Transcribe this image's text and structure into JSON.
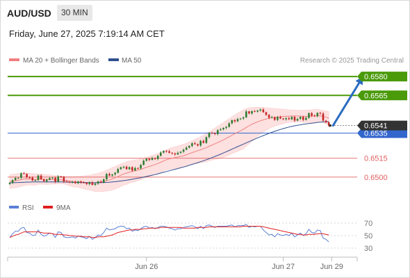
{
  "header": {
    "symbol": "AUD/USD",
    "timeframe": "30 MIN",
    "datetime": "Friday, June 27, 2025 7:19:14 AM CET"
  },
  "colors": {
    "resistance": "#4a9a0a",
    "pivot": "#3366cc",
    "support": "#e06060",
    "bull": "#2e7d32",
    "bear": "#c62828",
    "ma20": "#f08080",
    "ma50": "#2f4f8f",
    "bands": "#fde0e0",
    "rsi": "#5b7fd6",
    "rsi_ma": "#e02020",
    "arrow": "#2a6cc0",
    "current": "#333333"
  },
  "chart_data": [
    {
      "type": "candlestick",
      "legend": [
        {
          "name": "MA 20 + Bollinger Bands",
          "color": "#f08080"
        },
        {
          "name": "MA 50",
          "color": "#2f4f8f"
        }
      ],
      "credit": "Research © 2025 Trading Central",
      "ylim": [
        0.64938,
        0.65845
      ],
      "x_labels": [
        {
          "label": "Jun 26",
          "index": 48
        },
        {
          "label": "Jun 27",
          "index": 96
        },
        {
          "label": "Jun 29",
          "index": 113
        }
      ],
      "levels": [
        {
          "value": 0.658,
          "label": "0.6580",
          "kind": "resistance"
        },
        {
          "value": 0.6565,
          "label": "0.6565",
          "kind": "resistance"
        },
        {
          "value": 0.6535,
          "label": "0.6535",
          "kind": "pivot"
        },
        {
          "value": 0.6515,
          "label": "0.6515",
          "kind": "support"
        },
        {
          "value": 0.65,
          "label": "0.6500",
          "kind": "support"
        }
      ],
      "last_price": {
        "value": 0.6541,
        "label": "0.6541"
      },
      "forecast_arrow": {
        "from": {
          "index": 113,
          "value": 0.6541
        },
        "to": {
          "index": 124,
          "value": 0.658
        }
      },
      "closes": [
        0.64955,
        0.64976,
        0.64993,
        0.64994,
        0.6503,
        0.65025,
        0.64998,
        0.64996,
        0.64973,
        0.64977,
        0.65012,
        0.64982,
        0.64967,
        0.64979,
        0.64992,
        0.64995,
        0.64963,
        0.65005,
        0.65002,
        0.64965,
        0.64963,
        0.64959,
        0.64962,
        0.64951,
        0.64965,
        0.64957,
        0.64954,
        0.64944,
        0.64958,
        0.64938,
        0.64948,
        0.64965,
        0.64958,
        0.64983,
        0.65025,
        0.65012,
        0.65021,
        0.65034,
        0.65064,
        0.65078,
        0.65082,
        0.65063,
        0.65079,
        0.65052,
        0.65072,
        0.65069,
        0.65097,
        0.6513,
        0.65146,
        0.65137,
        0.65151,
        0.65144,
        0.65169,
        0.65195,
        0.65208,
        0.65205,
        0.65193,
        0.65188,
        0.6518,
        0.65193,
        0.65202,
        0.65218,
        0.65235,
        0.65248,
        0.65269,
        0.65262,
        0.65251,
        0.65288,
        0.65272,
        0.65318,
        0.65351,
        0.6535,
        0.65342,
        0.65373,
        0.6538,
        0.65391,
        0.65399,
        0.65427,
        0.65453,
        0.65443,
        0.65462,
        0.65466,
        0.65475,
        0.65523,
        0.65506,
        0.65524,
        0.65521,
        0.6553,
        0.65538,
        0.65516,
        0.65495,
        0.65472,
        0.65477,
        0.65455,
        0.65478,
        0.65466,
        0.6546,
        0.65469,
        0.6546,
        0.65479,
        0.65449,
        0.65463,
        0.65479,
        0.65455,
        0.65471,
        0.65509,
        0.65489,
        0.65484,
        0.65511,
        0.65506,
        0.65449,
        0.65436,
        0.6541
      ],
      "ma20": [
        0.64965,
        0.64968,
        0.6497,
        0.64975,
        0.6498,
        0.64985,
        0.64985,
        0.64985,
        0.64982,
        0.6498,
        0.64985,
        0.64985,
        0.64982,
        0.6498,
        0.6498,
        0.6498,
        0.64978,
        0.64978,
        0.64978,
        0.64975,
        0.64972,
        0.64968,
        0.64965,
        0.64962,
        0.64962,
        0.6496,
        0.64958,
        0.64956,
        0.64956,
        0.64955,
        0.64955,
        0.64958,
        0.6496,
        0.64965,
        0.64972,
        0.64978,
        0.64985,
        0.64995,
        0.65005,
        0.65015,
        0.65025,
        0.65032,
        0.6504,
        0.65045,
        0.6505,
        0.65055,
        0.65062,
        0.6507,
        0.65078,
        0.65085,
        0.65092,
        0.651,
        0.65108,
        0.65118,
        0.65128,
        0.65138,
        0.65145,
        0.6515,
        0.65155,
        0.6516,
        0.65165,
        0.6517,
        0.65178,
        0.65186,
        0.65195,
        0.65202,
        0.6521,
        0.65218,
        0.65226,
        0.65235,
        0.65245,
        0.65255,
        0.65265,
        0.65275,
        0.65285,
        0.65296,
        0.65308,
        0.6532,
        0.65333,
        0.65345,
        0.65357,
        0.65368,
        0.6538,
        0.65395,
        0.65408,
        0.6542,
        0.6543,
        0.6544,
        0.65448,
        0.65455,
        0.65462,
        0.65468,
        0.65472,
        0.65475,
        0.65478,
        0.6548,
        0.65482,
        0.65484,
        0.65485,
        0.65486,
        0.65486,
        0.65486,
        0.65485,
        0.65484,
        0.65483,
        0.65484,
        0.65485,
        0.65486,
        0.65487,
        0.65487,
        0.65482,
        0.65476,
        0.65468
      ],
      "ma50": [
        0.64955,
        0.64955,
        0.64956,
        0.64957,
        0.64958,
        0.64959,
        0.6496,
        0.6496,
        0.64961,
        0.64961,
        0.64962,
        0.64962,
        0.64962,
        0.64962,
        0.64962,
        0.64962,
        0.64962,
        0.64961,
        0.64961,
        0.6496,
        0.6496,
        0.64959,
        0.64959,
        0.64958,
        0.64958,
        0.64957,
        0.64957,
        0.64956,
        0.64956,
        0.64955,
        0.64955,
        0.64955,
        0.64956,
        0.64957,
        0.64958,
        0.64959,
        0.64961,
        0.64963,
        0.64966,
        0.64969,
        0.64972,
        0.64975,
        0.64979,
        0.64983,
        0.64987,
        0.64991,
        0.64995,
        0.65,
        0.65005,
        0.6501,
        0.65015,
        0.6502,
        0.65026,
        0.65032,
        0.65038,
        0.65044,
        0.6505,
        0.65056,
        0.65062,
        0.65068,
        0.65074,
        0.6508,
        0.65087,
        0.65094,
        0.65101,
        0.65108,
        0.65115,
        0.65122,
        0.6513,
        0.65138,
        0.65146,
        0.65155,
        0.65164,
        0.65173,
        0.65182,
        0.65192,
        0.65202,
        0.65212,
        0.65222,
        0.65232,
        0.65242,
        0.65252,
        0.65262,
        0.65272,
        0.65282,
        0.65292,
        0.65302,
        0.65312,
        0.65321,
        0.6533,
        0.65339,
        0.65348,
        0.65356,
        0.65364,
        0.65372,
        0.65379,
        0.65386,
        0.65392,
        0.65398,
        0.65403,
        0.65408,
        0.65412,
        0.65416,
        0.6542,
        0.65423,
        0.65426,
        0.65429,
        0.65432,
        0.65435,
        0.65437,
        0.65439,
        0.6544,
        0.65441
      ],
      "bb_upper": [
        0.6502,
        0.65022,
        0.65025,
        0.65028,
        0.6503,
        0.65032,
        0.65032,
        0.6503,
        0.65028,
        0.65025,
        0.65025,
        0.65024,
        0.65022,
        0.6502,
        0.65018,
        0.65015,
        0.65012,
        0.6501,
        0.65008,
        0.65005,
        0.65005,
        0.65005,
        0.65005,
        0.65005,
        0.65005,
        0.65008,
        0.6501,
        0.65012,
        0.65015,
        0.6502,
        0.65025,
        0.6503,
        0.65038,
        0.65045,
        0.65055,
        0.65065,
        0.65075,
        0.65085,
        0.65095,
        0.65105,
        0.65115,
        0.65122,
        0.65128,
        0.65132,
        0.65136,
        0.6514,
        0.65145,
        0.6515,
        0.65158,
        0.65165,
        0.65172,
        0.6518,
        0.65188,
        0.65198,
        0.65208,
        0.65218,
        0.65228,
        0.65236,
        0.65242,
        0.65248,
        0.65255,
        0.65262,
        0.6527,
        0.6528,
        0.6529,
        0.653,
        0.6531,
        0.65322,
        0.65335,
        0.65348,
        0.6536,
        0.65375,
        0.6539,
        0.65405,
        0.6542,
        0.65435,
        0.6545,
        0.65465,
        0.6548,
        0.65495,
        0.6551,
        0.65522,
        0.65535,
        0.65545,
        0.65552,
        0.65555,
        0.65556,
        0.65556,
        0.65555,
        0.65554,
        0.65552,
        0.6555,
        0.65548,
        0.65546,
        0.65544,
        0.65542,
        0.6554,
        0.65538,
        0.65536,
        0.65535,
        0.65534,
        0.65533,
        0.65532,
        0.65532,
        0.65533,
        0.65534,
        0.65536,
        0.65538,
        0.6554,
        0.65535,
        0.6553,
        0.65526,
        0.65522
      ],
      "bb_lower": [
        0.6491,
        0.64912,
        0.64915,
        0.6492,
        0.64925,
        0.64932,
        0.64935,
        0.64938,
        0.64936,
        0.64935,
        0.64942,
        0.64944,
        0.64942,
        0.6494,
        0.64942,
        0.64945,
        0.64944,
        0.64946,
        0.64948,
        0.64945,
        0.64939,
        0.64931,
        0.64925,
        0.64919,
        0.64919,
        0.64912,
        0.64906,
        0.649,
        0.64897,
        0.6489,
        0.64885,
        0.64886,
        0.64882,
        0.64885,
        0.64889,
        0.64891,
        0.64895,
        0.64905,
        0.64915,
        0.64925,
        0.64935,
        0.64942,
        0.64952,
        0.64958,
        0.64964,
        0.6497,
        0.64979,
        0.6499,
        0.64998,
        0.65005,
        0.65012,
        0.6502,
        0.65028,
        0.65038,
        0.65048,
        0.65058,
        0.65062,
        0.65064,
        0.65068,
        0.65072,
        0.65075,
        0.65078,
        0.65086,
        0.65092,
        0.651,
        0.65104,
        0.6511,
        0.65114,
        0.65117,
        0.65122,
        0.6513,
        0.65135,
        0.6514,
        0.65145,
        0.6515,
        0.65157,
        0.65166,
        0.65175,
        0.65186,
        0.65195,
        0.65204,
        0.65214,
        0.65225,
        0.65245,
        0.65264,
        0.65285,
        0.65304,
        0.65324,
        0.65341,
        0.65356,
        0.65372,
        0.65386,
        0.65396,
        0.65404,
        0.65412,
        0.65418,
        0.65424,
        0.6543,
        0.65434,
        0.65437,
        0.65438,
        0.65439,
        0.65438,
        0.65436,
        0.65433,
        0.65434,
        0.65434,
        0.65434,
        0.65434,
        0.65439,
        0.65434,
        0.65426,
        0.65414
      ]
    },
    {
      "type": "line",
      "legend": [
        {
          "name": "RSI",
          "color": "#5b7fd6"
        },
        {
          "name": "9MA",
          "color": "#e02020"
        }
      ],
      "ylim": [
        30,
        70
      ],
      "y_ticks": [
        "70",
        "50",
        "30"
      ],
      "series": [
        {
          "name": "RSI",
          "values": [
            47,
            53,
            57,
            57,
            62,
            63,
            55,
            54,
            50,
            51,
            59,
            52,
            49,
            51,
            54,
            53,
            47,
            56,
            55,
            48,
            47,
            47,
            48,
            46,
            49,
            48,
            47,
            45,
            49,
            44,
            47,
            51,
            50,
            55,
            62,
            59,
            60,
            61,
            64,
            65,
            65,
            61,
            62,
            57,
            59,
            58,
            61,
            64,
            65,
            62,
            63,
            61,
            63,
            65,
            65,
            64,
            62,
            61,
            59,
            61,
            61,
            63,
            64,
            65,
            66,
            64,
            61,
            65,
            61,
            66,
            67,
            65,
            63,
            65,
            65,
            65,
            65,
            66,
            67,
            64,
            66,
            66,
            66,
            68,
            63,
            65,
            64,
            65,
            65,
            59,
            55,
            51,
            52,
            48,
            53,
            51,
            50,
            52,
            50,
            54,
            48,
            51,
            54,
            50,
            53,
            60,
            55,
            54,
            59,
            58,
            46,
            44,
            40
          ]
        },
        {
          "name": "9MA",
          "values": [
            47,
            49,
            51,
            52,
            54,
            56,
            56,
            56,
            56,
            56,
            56,
            55,
            54,
            54,
            54,
            53,
            52,
            52,
            52,
            51,
            51,
            50,
            50,
            49,
            49,
            49,
            48,
            48,
            48,
            47,
            47,
            48,
            48,
            48,
            49,
            50,
            51,
            53,
            55,
            56,
            57,
            58,
            59,
            59,
            60,
            60,
            60,
            61,
            61,
            62,
            62,
            62,
            62,
            63,
            63,
            63,
            63,
            63,
            63,
            63,
            63,
            62,
            62,
            62,
            62,
            62,
            63,
            63,
            63,
            63,
            64,
            64,
            64,
            64,
            64,
            64,
            64,
            64,
            64,
            64,
            64,
            64,
            65,
            65,
            65,
            65,
            65,
            65,
            65,
            64,
            63,
            62,
            61,
            60,
            59,
            58,
            57,
            56,
            55,
            54,
            53,
            52,
            52,
            51,
            51,
            52,
            52,
            52,
            53,
            53,
            53,
            52,
            51
          ]
        }
      ]
    }
  ]
}
